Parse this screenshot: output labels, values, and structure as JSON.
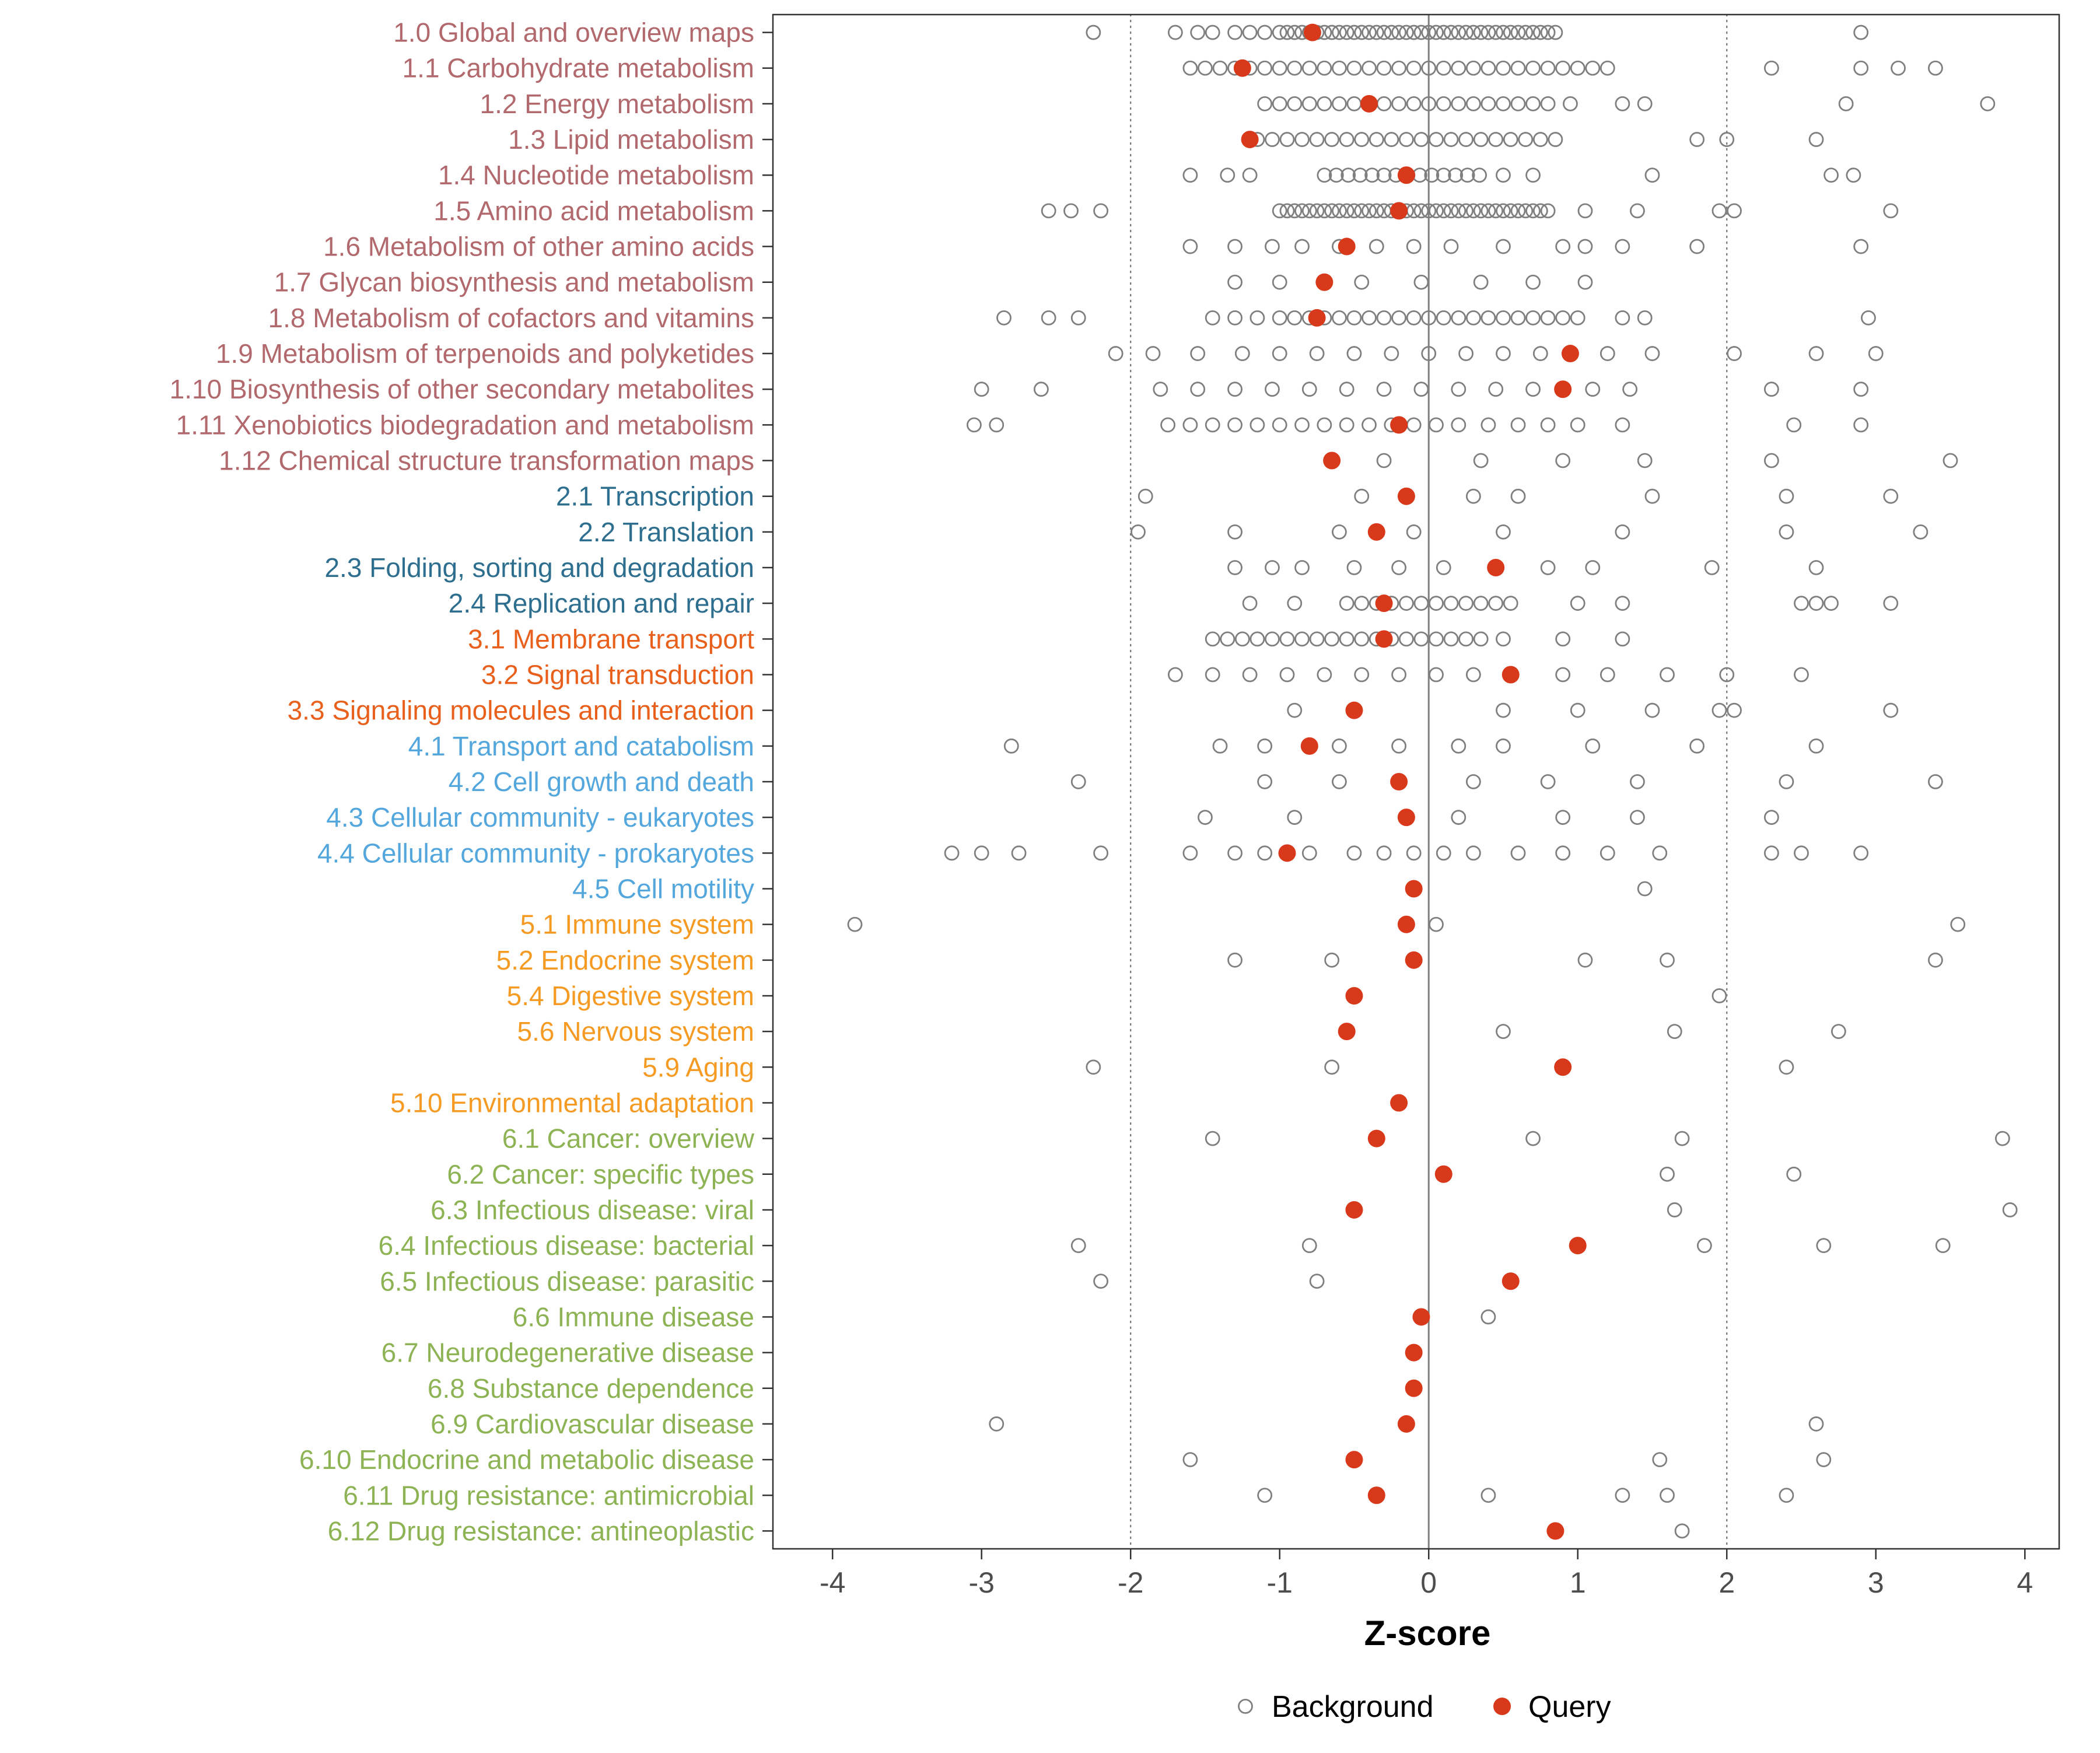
{
  "chart_data": {
    "type": "scatter",
    "title": "",
    "xlabel": "Z-score",
    "xlim": [
      -4.4,
      4.23
    ],
    "x_ticks": [
      -4,
      -3,
      -2,
      -1,
      0,
      1,
      2,
      3,
      4
    ],
    "reference_line": 0,
    "dotted_lines": [
      -2,
      2
    ],
    "grid": "off",
    "legend": {
      "position": "bottom",
      "background": "Background",
      "query": "Query"
    },
    "group_colors": {
      "1": "#B2696D",
      "2": "#2E6E8E",
      "3": "#E8601C",
      "4": "#54A7DC",
      "5": "#F59B23",
      "6": "#8DB354"
    },
    "query_color": "#D8391B",
    "background_color": "#7F7F7F",
    "axis_text_color": "#4D4D4D",
    "categories": [
      {
        "label": "1.0 Global and overview maps",
        "group": "1",
        "query": -0.78,
        "background": [
          -2.25,
          -1.7,
          -1.55,
          -1.45,
          -1.3,
          -1.2,
          -1.1,
          -1.0,
          -0.95,
          -0.9,
          -0.85,
          -0.8,
          -0.75,
          -0.7,
          -0.65,
          -0.6,
          -0.55,
          -0.5,
          -0.45,
          -0.4,
          -0.35,
          -0.3,
          -0.25,
          -0.2,
          -0.15,
          -0.1,
          -0.05,
          0,
          0.05,
          0.1,
          0.15,
          0.2,
          0.25,
          0.3,
          0.35,
          0.4,
          0.45,
          0.5,
          0.55,
          0.6,
          0.65,
          0.7,
          0.75,
          0.8,
          0.85,
          2.9
        ]
      },
      {
        "label": "1.1 Carbohydrate metabolism",
        "group": "1",
        "query": -1.25,
        "background": [
          -1.6,
          -1.5,
          -1.4,
          -1.3,
          -1.2,
          -1.1,
          -1.0,
          -0.9,
          -0.8,
          -0.7,
          -0.6,
          -0.5,
          -0.4,
          -0.3,
          -0.2,
          -0.1,
          0,
          0.1,
          0.2,
          0.3,
          0.4,
          0.5,
          0.6,
          0.7,
          0.8,
          0.9,
          1.0,
          1.1,
          1.2,
          2.3,
          2.9,
          3.15,
          3.4
        ]
      },
      {
        "label": "1.2 Energy metabolism",
        "group": "1",
        "query": -0.4,
        "background": [
          -1.1,
          -1.0,
          -0.9,
          -0.8,
          -0.7,
          -0.6,
          -0.5,
          -0.4,
          -0.3,
          -0.2,
          -0.1,
          0,
          0.1,
          0.2,
          0.3,
          0.4,
          0.5,
          0.6,
          0.7,
          0.8,
          0.95,
          1.3,
          1.45,
          2.8,
          3.75
        ]
      },
      {
        "label": "1.3 Lipid metabolism",
        "group": "1",
        "query": -1.2,
        "background": [
          -1.15,
          -1.05,
          -0.95,
          -0.85,
          -0.75,
          -0.65,
          -0.55,
          -0.45,
          -0.35,
          -0.25,
          -0.15,
          -0.05,
          0.05,
          0.15,
          0.25,
          0.35,
          0.45,
          0.55,
          0.65,
          0.75,
          0.85,
          1.8,
          2.0,
          2.6
        ]
      },
      {
        "label": "1.4 Nucleotide metabolism",
        "group": "1",
        "query": -0.15,
        "background": [
          -1.6,
          -1.35,
          -1.2,
          -0.7,
          -0.62,
          -0.54,
          -0.46,
          -0.38,
          -0.3,
          -0.22,
          -0.14,
          -0.06,
          0.02,
          0.1,
          0.18,
          0.26,
          0.34,
          0.5,
          0.7,
          1.5,
          2.7,
          2.85
        ]
      },
      {
        "label": "1.5 Amino acid metabolism",
        "group": "1",
        "query": -0.2,
        "background": [
          -2.55,
          -2.4,
          -2.2,
          -1.0,
          -0.95,
          -0.9,
          -0.85,
          -0.8,
          -0.75,
          -0.7,
          -0.65,
          -0.6,
          -0.55,
          -0.5,
          -0.45,
          -0.4,
          -0.35,
          -0.3,
          -0.25,
          -0.2,
          -0.15,
          -0.1,
          -0.05,
          0,
          0.05,
          0.1,
          0.15,
          0.2,
          0.25,
          0.3,
          0.35,
          0.4,
          0.45,
          0.5,
          0.55,
          0.6,
          0.65,
          0.7,
          0.75,
          0.8,
          1.05,
          1.4,
          1.95,
          2.05,
          3.1
        ]
      },
      {
        "label": "1.6 Metabolism of other amino acids",
        "group": "1",
        "query": -0.55,
        "background": [
          -1.6,
          -1.3,
          -1.05,
          -0.85,
          -0.6,
          -0.35,
          -0.1,
          0.15,
          0.5,
          0.9,
          1.05,
          1.3,
          1.8,
          2.9
        ]
      },
      {
        "label": "1.7 Glycan biosynthesis and metabolism",
        "group": "1",
        "query": -0.7,
        "background": [
          -1.3,
          -1.0,
          -0.45,
          -0.05,
          0.35,
          0.7,
          1.05
        ]
      },
      {
        "label": "1.8 Metabolism of cofactors and vitamins",
        "group": "1",
        "query": -0.75,
        "background": [
          -2.85,
          -2.55,
          -2.35,
          -1.45,
          -1.3,
          -1.15,
          -1.0,
          -0.9,
          -0.8,
          -0.7,
          -0.6,
          -0.5,
          -0.4,
          -0.3,
          -0.2,
          -0.1,
          0,
          0.1,
          0.2,
          0.3,
          0.4,
          0.5,
          0.6,
          0.7,
          0.8,
          0.9,
          1.0,
          1.3,
          1.45,
          2.95
        ]
      },
      {
        "label": "1.9 Metabolism of terpenoids and polyketides",
        "group": "1",
        "query": 0.95,
        "background": [
          -2.1,
          -1.85,
          -1.55,
          -1.25,
          -1.0,
          -0.75,
          -0.5,
          -0.25,
          0,
          0.25,
          0.5,
          0.75,
          1.2,
          1.5,
          2.05,
          2.6,
          3.0
        ]
      },
      {
        "label": "1.10 Biosynthesis of other secondary metabolites",
        "group": "1",
        "query": 0.9,
        "background": [
          -3.0,
          -2.6,
          -1.8,
          -1.55,
          -1.3,
          -1.05,
          -0.8,
          -0.55,
          -0.3,
          -0.05,
          0.2,
          0.45,
          0.7,
          1.1,
          1.35,
          2.3,
          2.9
        ]
      },
      {
        "label": "1.11 Xenobiotics biodegradation and metabolism",
        "group": "1",
        "query": -0.2,
        "background": [
          -3.05,
          -2.9,
          -1.75,
          -1.6,
          -1.45,
          -1.3,
          -1.15,
          -1.0,
          -0.85,
          -0.7,
          -0.55,
          -0.4,
          -0.25,
          -0.1,
          0.05,
          0.2,
          0.4,
          0.6,
          0.8,
          1.0,
          1.3,
          2.45,
          2.9
        ]
      },
      {
        "label": "1.12 Chemical structure transformation maps",
        "group": "1",
        "query": -0.65,
        "background": [
          -0.3,
          0.35,
          0.9,
          1.45,
          2.3,
          3.5
        ]
      },
      {
        "label": "2.1 Transcription",
        "group": "2",
        "query": -0.15,
        "background": [
          -1.9,
          -0.45,
          0.3,
          0.6,
          1.5,
          2.4,
          3.1
        ]
      },
      {
        "label": "2.2 Translation",
        "group": "2",
        "query": -0.35,
        "background": [
          -1.95,
          -1.3,
          -0.6,
          -0.1,
          0.5,
          1.3,
          2.4,
          3.3
        ]
      },
      {
        "label": "2.3 Folding, sorting and degradation",
        "group": "2",
        "query": 0.45,
        "background": [
          -1.3,
          -1.05,
          -0.85,
          -0.5,
          -0.2,
          0.1,
          0.8,
          1.1,
          1.9,
          2.6
        ]
      },
      {
        "label": "2.4 Replication and repair",
        "group": "2",
        "query": -0.3,
        "background": [
          -1.2,
          -0.9,
          -0.55,
          -0.45,
          -0.35,
          -0.25,
          -0.15,
          -0.05,
          0.05,
          0.15,
          0.25,
          0.35,
          0.45,
          0.55,
          1.0,
          1.3,
          2.5,
          2.6,
          2.7,
          3.1
        ]
      },
      {
        "label": "3.1 Membrane transport",
        "group": "3",
        "query": -0.3,
        "background": [
          -1.45,
          -1.35,
          -1.25,
          -1.15,
          -1.05,
          -0.95,
          -0.85,
          -0.75,
          -0.65,
          -0.55,
          -0.45,
          -0.35,
          -0.25,
          -0.15,
          -0.05,
          0.05,
          0.15,
          0.25,
          0.35,
          0.5,
          0.9,
          1.3
        ]
      },
      {
        "label": "3.2 Signal transduction",
        "group": "3",
        "query": 0.55,
        "background": [
          -1.7,
          -1.45,
          -1.2,
          -0.95,
          -0.7,
          -0.45,
          -0.2,
          0.05,
          0.3,
          0.9,
          1.2,
          1.6,
          2.0,
          2.5
        ]
      },
      {
        "label": "3.3 Signaling molecules and interaction",
        "group": "3",
        "query": -0.5,
        "background": [
          -0.9,
          0.5,
          1.0,
          1.5,
          1.95,
          2.05,
          3.1
        ]
      },
      {
        "label": "4.1 Transport and catabolism",
        "group": "4",
        "query": -0.8,
        "background": [
          -2.8,
          -1.4,
          -1.1,
          -0.6,
          -0.2,
          0.2,
          0.5,
          1.1,
          1.8,
          2.6
        ]
      },
      {
        "label": "4.2 Cell growth and death",
        "group": "4",
        "query": -0.2,
        "background": [
          -2.35,
          -1.1,
          -0.6,
          0.3,
          0.8,
          1.4,
          2.4,
          3.4
        ]
      },
      {
        "label": "4.3 Cellular community - eukaryotes",
        "group": "4",
        "query": -0.15,
        "background": [
          -1.5,
          -0.9,
          0.2,
          0.9,
          1.4,
          2.3
        ]
      },
      {
        "label": "4.4 Cellular community - prokaryotes",
        "group": "4",
        "query": -0.95,
        "background": [
          -3.2,
          -3.0,
          -2.75,
          -2.2,
          -1.6,
          -1.3,
          -1.1,
          -0.8,
          -0.5,
          -0.3,
          -0.1,
          0.1,
          0.3,
          0.6,
          0.9,
          1.2,
          1.55,
          2.3,
          2.5,
          2.9
        ]
      },
      {
        "label": "4.5 Cell motility",
        "group": "4",
        "query": -0.1,
        "background": [
          1.45
        ]
      },
      {
        "label": "5.1 Immune system",
        "group": "5",
        "query": -0.15,
        "background": [
          -3.85,
          0.05,
          3.55
        ]
      },
      {
        "label": "5.2 Endocrine system",
        "group": "5",
        "query": -0.1,
        "background": [
          -1.3,
          -0.65,
          1.05,
          1.6,
          3.4
        ]
      },
      {
        "label": "5.4 Digestive system",
        "group": "5",
        "query": -0.5,
        "background": [
          1.95
        ]
      },
      {
        "label": "5.6 Nervous system",
        "group": "5",
        "query": -0.55,
        "background": [
          0.5,
          1.65,
          2.75
        ]
      },
      {
        "label": "5.9 Aging",
        "group": "5",
        "query": 0.9,
        "background": [
          -2.25,
          -0.65,
          2.4
        ]
      },
      {
        "label": "5.10 Environmental adaptation",
        "group": "5",
        "query": -0.2,
        "background": []
      },
      {
        "label": "6.1 Cancer: overview",
        "group": "6",
        "query": -0.35,
        "background": [
          -1.45,
          0.7,
          1.7,
          3.85
        ]
      },
      {
        "label": "6.2 Cancer: specific types",
        "group": "6",
        "query": 0.1,
        "background": [
          1.6,
          2.45
        ]
      },
      {
        "label": "6.3 Infectious disease: viral",
        "group": "6",
        "query": -0.5,
        "background": [
          1.65,
          3.9
        ]
      },
      {
        "label": "6.4 Infectious disease: bacterial",
        "group": "6",
        "query": 1.0,
        "background": [
          -2.35,
          -0.8,
          1.85,
          2.65,
          3.45
        ]
      },
      {
        "label": "6.5 Infectious disease: parasitic",
        "group": "6",
        "query": 0.55,
        "background": [
          -2.2,
          -0.75
        ]
      },
      {
        "label": "6.6 Immune disease",
        "group": "6",
        "query": -0.05,
        "background": [
          0.4
        ]
      },
      {
        "label": "6.7 Neurodegenerative disease",
        "group": "6",
        "query": -0.1,
        "background": []
      },
      {
        "label": "6.8 Substance dependence",
        "group": "6",
        "query": -0.1,
        "background": []
      },
      {
        "label": "6.9 Cardiovascular disease",
        "group": "6",
        "query": -0.15,
        "background": [
          -2.9,
          2.6
        ]
      },
      {
        "label": "6.10 Endocrine and metabolic disease",
        "group": "6",
        "query": -0.5,
        "background": [
          -1.6,
          1.55,
          2.65
        ]
      },
      {
        "label": "6.11 Drug resistance: antimicrobial",
        "group": "6",
        "query": -0.35,
        "background": [
          -1.1,
          0.4,
          1.3,
          1.6,
          2.4
        ]
      },
      {
        "label": "6.12 Drug resistance: antineoplastic",
        "group": "6",
        "query": 0.85,
        "background": [
          1.7
        ]
      }
    ]
  }
}
